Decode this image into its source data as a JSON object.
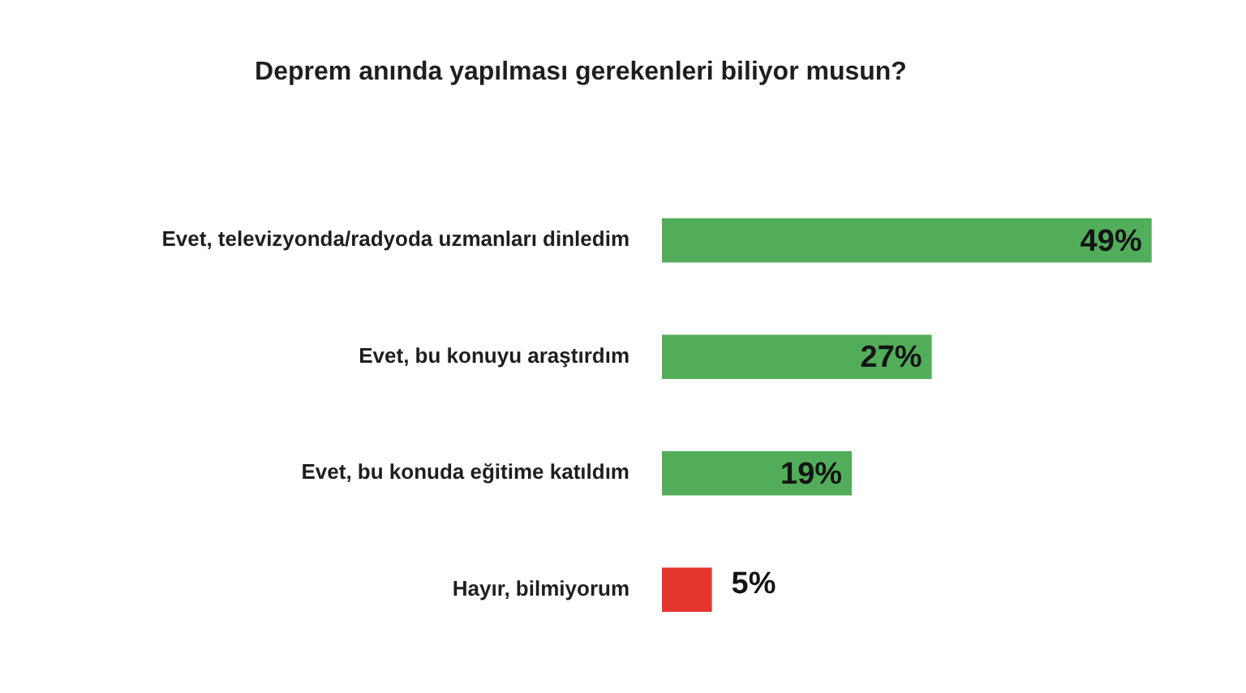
{
  "chart_data": {
    "type": "bar",
    "orientation": "horizontal",
    "title": "Deprem anında yapılması gerekenleri biliyor musun?",
    "categories": [
      "Evet, televizyonda/radyoda uzmanları dinledim",
      "Evet, bu konuyu araştırdım",
      "Evet, bu konuda eğitime katıldım",
      "Hayır, bilmiyorum"
    ],
    "values": [
      49,
      27,
      19,
      5
    ],
    "colors": [
      "#52ad5b",
      "#52ad5b",
      "#52ad5b",
      "#e5352f"
    ],
    "value_labels": [
      "49%",
      "27%",
      "19%",
      "5%"
    ]
  }
}
